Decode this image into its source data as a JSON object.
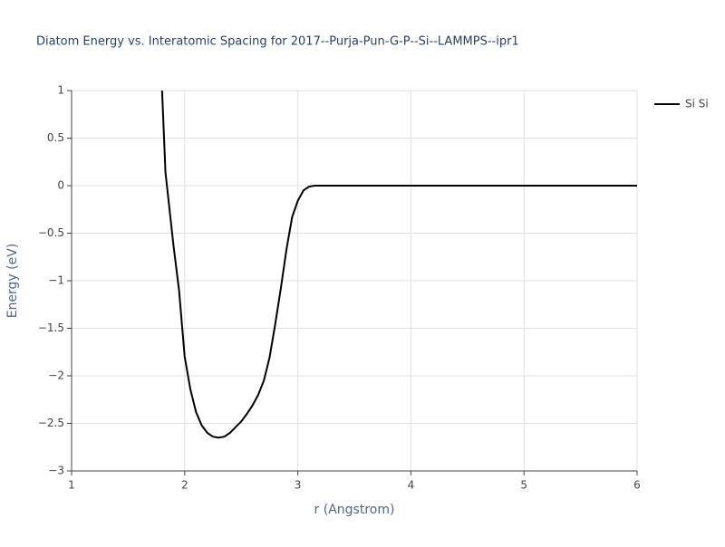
{
  "chart_data": {
    "type": "line",
    "title": "Diatom Energy vs. Interatomic Spacing for 2017--Purja-Pun-G-P--Si--LAMMPS--ipr1",
    "x_label": "r (Angstrom)",
    "y_label": "Energy (eV)",
    "x": [
      1.8,
      1.83,
      1.865,
      1.9,
      1.95,
      2.0,
      2.05,
      2.1,
      2.15,
      2.2,
      2.25,
      2.3,
      2.35,
      2.4,
      2.45,
      2.5,
      2.55,
      2.6,
      2.65,
      2.7,
      2.75,
      2.8,
      2.85,
      2.9,
      2.95,
      3.0,
      3.05,
      3.1,
      3.15,
      3.2,
      6.0
    ],
    "series": [
      {
        "name": "Si Si",
        "color": "#000000",
        "values": [
          1.0,
          0.14,
          -0.24,
          -0.62,
          -1.1,
          -1.8,
          -2.14,
          -2.38,
          -2.52,
          -2.6,
          -2.64,
          -2.65,
          -2.64,
          -2.6,
          -2.54,
          -2.48,
          -2.4,
          -2.31,
          -2.2,
          -2.05,
          -1.81,
          -1.46,
          -1.08,
          -0.67,
          -0.33,
          -0.16,
          -0.05,
          -0.01,
          0.0,
          0.0,
          0.0
        ]
      }
    ],
    "xlim": [
      1,
      6
    ],
    "xticks": [
      1,
      2,
      3,
      4,
      5,
      6
    ],
    "ylim": [
      -3,
      1
    ],
    "yticks": [
      {
        "value": -3,
        "label": "−3"
      },
      {
        "value": -2.5,
        "label": "−2.5"
      },
      {
        "value": -2,
        "label": "−2"
      },
      {
        "value": -1.5,
        "label": "−1.5"
      },
      {
        "value": -1,
        "label": "−1"
      },
      {
        "value": -0.5,
        "label": "−0.5"
      },
      0,
      0.5,
      1
    ],
    "grid": true,
    "legend": "right"
  }
}
